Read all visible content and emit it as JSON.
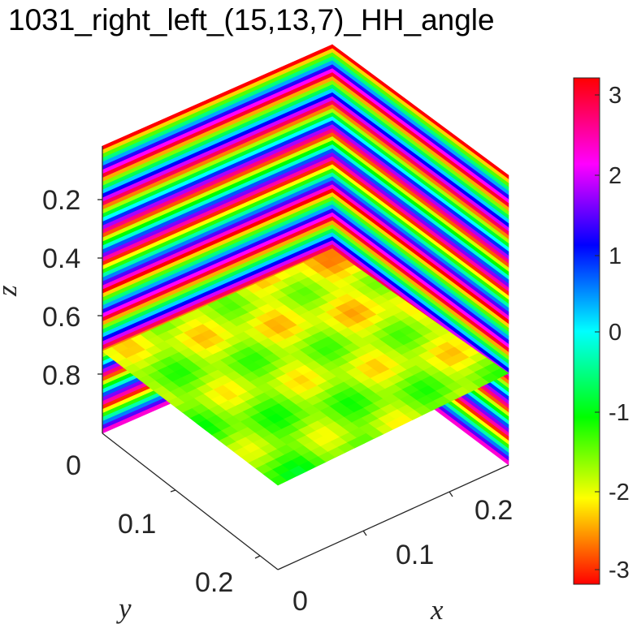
{
  "chart_data": {
    "type": "heatmap",
    "title": "1031_right_left_(15,13,7)_HH_angle",
    "xlabel": "x",
    "ylabel": "y",
    "zlabel": "z",
    "x_ticks": [
      "0",
      "0.1",
      "0.2"
    ],
    "y_ticks": [
      "0",
      "0.1",
      "0.2"
    ],
    "z_ticks": [
      "0.2",
      "0.4",
      "0.6",
      "0.8"
    ],
    "x_range": [
      0,
      0.24
    ],
    "y_range": [
      0,
      0.24
    ],
    "z_range": [
      0,
      1
    ],
    "z_reversed": true,
    "slices": [
      "x = 0.24 back wall",
      "y = 0.24 back wall",
      "z = 0.8 horizontal plane"
    ],
    "colormap": "hsv",
    "colorbar": {
      "ticks": [
        "3",
        "2",
        "1",
        "0",
        "-1",
        "-2",
        "-3"
      ],
      "range": [
        -3.1416,
        3.1416
      ],
      "colors": [
        "#ff0000",
        "#ff00ff",
        "#0000ff",
        "#00ffff",
        "#00ff00",
        "#ffff00",
        "#ff0000"
      ]
    },
    "grid": false
  }
}
